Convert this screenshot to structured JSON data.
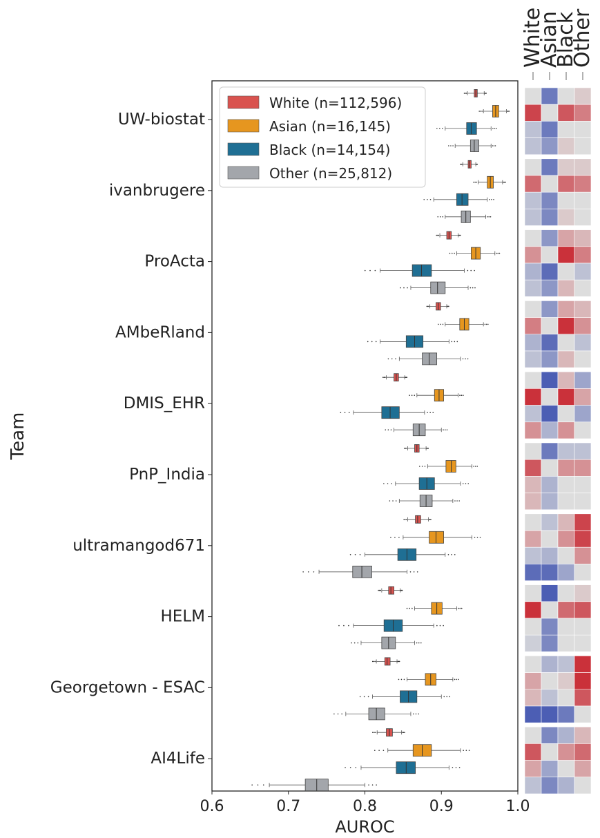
{
  "chart_data": {
    "type": "boxplot",
    "ylabel": "Team",
    "xlabel": "AUROC",
    "xlim": [
      0.6,
      1.0
    ],
    "xticks": [
      "0.6",
      "0.7",
      "0.8",
      "0.9",
      "1.0"
    ],
    "grid": false,
    "legend_position": "top-left",
    "groups": [
      {
        "name": "White (n=112,596)",
        "color": "#d9534f"
      },
      {
        "name": "Asian (n=16,145)",
        "color": "#e6961f"
      },
      {
        "name": "Black (n=14,154)",
        "color": "#1f6f94"
      },
      {
        "name": "Other (n=25,812)",
        "color": "#a3a6ab"
      }
    ],
    "teams": [
      {
        "name": "UW-biostat",
        "boxes": [
          {
            "q1": 0.943,
            "median": 0.945,
            "q3": 0.947,
            "wlo": 0.934,
            "whi": 0.956
          },
          {
            "q1": 0.967,
            "median": 0.971,
            "q3": 0.975,
            "wlo": 0.955,
            "whi": 0.985
          },
          {
            "q1": 0.933,
            "median": 0.939,
            "q3": 0.946,
            "wlo": 0.905,
            "whi": 0.965
          },
          {
            "q1": 0.938,
            "median": 0.943,
            "q3": 0.949,
            "wlo": 0.918,
            "whi": 0.965
          }
        ]
      },
      {
        "name": "ivanbrugere",
        "boxes": [
          {
            "q1": 0.935,
            "median": 0.937,
            "q3": 0.939,
            "wlo": 0.928,
            "whi": 0.945
          },
          {
            "q1": 0.96,
            "median": 0.964,
            "q3": 0.968,
            "wlo": 0.948,
            "whi": 0.98
          },
          {
            "q1": 0.92,
            "median": 0.927,
            "q3": 0.935,
            "wlo": 0.89,
            "whi": 0.96
          },
          {
            "q1": 0.926,
            "median": 0.932,
            "q3": 0.938,
            "wlo": 0.905,
            "whi": 0.958
          }
        ]
      },
      {
        "name": "ProActa",
        "boxes": [
          {
            "q1": 0.907,
            "median": 0.91,
            "q3": 0.913,
            "wlo": 0.898,
            "whi": 0.922
          },
          {
            "q1": 0.939,
            "median": 0.945,
            "q3": 0.951,
            "wlo": 0.92,
            "whi": 0.97
          },
          {
            "q1": 0.862,
            "median": 0.874,
            "q3": 0.887,
            "wlo": 0.82,
            "whi": 0.93
          },
          {
            "q1": 0.886,
            "median": 0.895,
            "q3": 0.905,
            "wlo": 0.86,
            "whi": 0.935
          }
        ]
      },
      {
        "name": "AMbeRland",
        "boxes": [
          {
            "q1": 0.893,
            "median": 0.896,
            "q3": 0.899,
            "wlo": 0.885,
            "whi": 0.907
          },
          {
            "q1": 0.924,
            "median": 0.93,
            "q3": 0.936,
            "wlo": 0.905,
            "whi": 0.955
          },
          {
            "q1": 0.854,
            "median": 0.865,
            "q3": 0.876,
            "wlo": 0.82,
            "whi": 0.91
          },
          {
            "q1": 0.875,
            "median": 0.884,
            "q3": 0.894,
            "wlo": 0.845,
            "whi": 0.925
          }
        ]
      },
      {
        "name": "DMIS_EHR",
        "boxes": [
          {
            "q1": 0.838,
            "median": 0.841,
            "q3": 0.844,
            "wlo": 0.828,
            "whi": 0.852
          },
          {
            "q1": 0.891,
            "median": 0.897,
            "q3": 0.903,
            "wlo": 0.868,
            "whi": 0.922
          },
          {
            "q1": 0.822,
            "median": 0.833,
            "q3": 0.845,
            "wlo": 0.785,
            "whi": 0.878
          },
          {
            "q1": 0.863,
            "median": 0.871,
            "q3": 0.879,
            "wlo": 0.838,
            "whi": 0.9
          }
        ]
      },
      {
        "name": "PnP_India",
        "boxes": [
          {
            "q1": 0.865,
            "median": 0.868,
            "q3": 0.871,
            "wlo": 0.856,
            "whi": 0.88
          },
          {
            "q1": 0.906,
            "median": 0.913,
            "q3": 0.919,
            "wlo": 0.882,
            "whi": 0.94
          },
          {
            "q1": 0.871,
            "median": 0.881,
            "q3": 0.891,
            "wlo": 0.84,
            "whi": 0.925
          },
          {
            "q1": 0.872,
            "median": 0.88,
            "q3": 0.888,
            "wlo": 0.845,
            "whi": 0.915
          }
        ]
      },
      {
        "name": "ultramangod671",
        "boxes": [
          {
            "q1": 0.866,
            "median": 0.869,
            "q3": 0.873,
            "wlo": 0.856,
            "whi": 0.883
          },
          {
            "q1": 0.884,
            "median": 0.893,
            "q3": 0.903,
            "wlo": 0.85,
            "whi": 0.94
          },
          {
            "q1": 0.843,
            "median": 0.855,
            "q3": 0.867,
            "wlo": 0.8,
            "whi": 0.905
          },
          {
            "q1": 0.784,
            "median": 0.796,
            "q3": 0.809,
            "wlo": 0.74,
            "whi": 0.855
          }
        ]
      },
      {
        "name": "HELM",
        "boxes": [
          {
            "q1": 0.831,
            "median": 0.834,
            "q3": 0.838,
            "wlo": 0.822,
            "whi": 0.846
          },
          {
            "q1": 0.887,
            "median": 0.894,
            "q3": 0.901,
            "wlo": 0.865,
            "whi": 0.92
          },
          {
            "q1": 0.825,
            "median": 0.837,
            "q3": 0.849,
            "wlo": 0.785,
            "whi": 0.89
          },
          {
            "q1": 0.822,
            "median": 0.831,
            "q3": 0.84,
            "wlo": 0.795,
            "whi": 0.865
          }
        ]
      },
      {
        "name": "Georgetown - ESAC",
        "boxes": [
          {
            "q1": 0.826,
            "median": 0.829,
            "q3": 0.833,
            "wlo": 0.815,
            "whi": 0.842
          },
          {
            "q1": 0.879,
            "median": 0.886,
            "q3": 0.893,
            "wlo": 0.855,
            "whi": 0.915
          },
          {
            "q1": 0.846,
            "median": 0.857,
            "q3": 0.868,
            "wlo": 0.81,
            "whi": 0.9
          },
          {
            "q1": 0.805,
            "median": 0.815,
            "q3": 0.826,
            "wlo": 0.775,
            "whi": 0.86
          }
        ]
      },
      {
        "name": "AI4Life",
        "boxes": [
          {
            "q1": 0.828,
            "median": 0.832,
            "q3": 0.836,
            "wlo": 0.816,
            "whi": 0.848
          },
          {
            "q1": 0.863,
            "median": 0.875,
            "q3": 0.887,
            "wlo": 0.83,
            "whi": 0.925
          },
          {
            "q1": 0.841,
            "median": 0.854,
            "q3": 0.866,
            "wlo": 0.795,
            "whi": 0.91
          },
          {
            "q1": 0.722,
            "median": 0.737,
            "q3": 0.752,
            "wlo": 0.675,
            "whi": 0.8
          }
        ]
      }
    ],
    "heatmap": {
      "columns": [
        "White",
        "Asian",
        "Black",
        "Other"
      ],
      "color_scale": "diverging blue-grey-red",
      "teams": [
        {
          "name": "UW-biostat",
          "matrix": [
            [
              0.0,
              -0.7,
              0.0,
              0.1
            ],
            [
              0.8,
              0.0,
              0.7,
              0.5
            ],
            [
              -0.2,
              -0.7,
              0.0,
              0.0
            ],
            [
              -0.2,
              -0.5,
              0.1,
              0.0
            ]
          ]
        },
        {
          "name": "ivanbrugere",
          "matrix": [
            [
              0.0,
              -0.7,
              0.1,
              0.1
            ],
            [
              0.6,
              0.0,
              0.6,
              0.5
            ],
            [
              -0.2,
              -0.6,
              0.0,
              0.0
            ],
            [
              -0.2,
              -0.6,
              0.1,
              0.0
            ]
          ]
        },
        {
          "name": "ProActa",
          "matrix": [
            [
              0.0,
              -0.5,
              0.3,
              0.2
            ],
            [
              0.4,
              0.0,
              0.9,
              0.5
            ],
            [
              -0.3,
              -0.8,
              0.0,
              -0.2
            ],
            [
              -0.2,
              -0.5,
              0.2,
              0.0
            ]
          ]
        },
        {
          "name": "AMbeRland",
          "matrix": [
            [
              0.0,
              -0.5,
              0.3,
              0.2
            ],
            [
              0.5,
              0.0,
              0.9,
              0.4
            ],
            [
              -0.3,
              -0.8,
              0.0,
              -0.2
            ],
            [
              -0.2,
              -0.5,
              0.2,
              0.0
            ]
          ]
        },
        {
          "name": "DMIS_EHR",
          "matrix": [
            [
              0.0,
              -0.9,
              0.2,
              -0.4
            ],
            [
              0.9,
              0.0,
              0.9,
              0.3
            ],
            [
              -0.2,
              -0.9,
              0.0,
              -0.4
            ],
            [
              0.4,
              -0.3,
              0.4,
              0.0
            ]
          ]
        },
        {
          "name": "PnP_India",
          "matrix": [
            [
              0.0,
              -0.7,
              -0.2,
              -0.2
            ],
            [
              0.7,
              0.0,
              0.4,
              0.4
            ],
            [
              0.2,
              -0.3,
              0.0,
              0.0
            ],
            [
              0.2,
              -0.3,
              0.0,
              0.0
            ]
          ]
        },
        {
          "name": "ultramangod671",
          "matrix": [
            [
              0.0,
              -0.2,
              0.2,
              0.8
            ],
            [
              0.3,
              0.0,
              0.4,
              0.8
            ],
            [
              -0.2,
              -0.3,
              0.0,
              0.4
            ],
            [
              -0.8,
              -0.8,
              -0.4,
              0.0
            ]
          ]
        },
        {
          "name": "HELM",
          "matrix": [
            [
              0.0,
              -0.9,
              0.0,
              0.1
            ],
            [
              0.9,
              0.0,
              0.6,
              0.7
            ],
            [
              0.0,
              -0.6,
              0.0,
              0.0
            ],
            [
              -0.1,
              -0.6,
              0.0,
              0.0
            ]
          ]
        },
        {
          "name": "Georgetown - ESAC",
          "matrix": [
            [
              0.0,
              -0.3,
              -0.2,
              0.9
            ],
            [
              0.3,
              0.0,
              0.1,
              0.9
            ],
            [
              0.2,
              -0.2,
              0.0,
              0.7
            ],
            [
              -0.9,
              -0.9,
              -0.7,
              0.0
            ]
          ]
        },
        {
          "name": "AI4Life",
          "matrix": [
            [
              0.0,
              -0.6,
              -0.3,
              0.2
            ],
            [
              0.7,
              0.0,
              0.4,
              0.6
            ],
            [
              0.3,
              -0.4,
              0.0,
              0.3
            ],
            [
              -0.2,
              -0.6,
              -0.3,
              0.0
            ]
          ]
        }
      ]
    }
  }
}
